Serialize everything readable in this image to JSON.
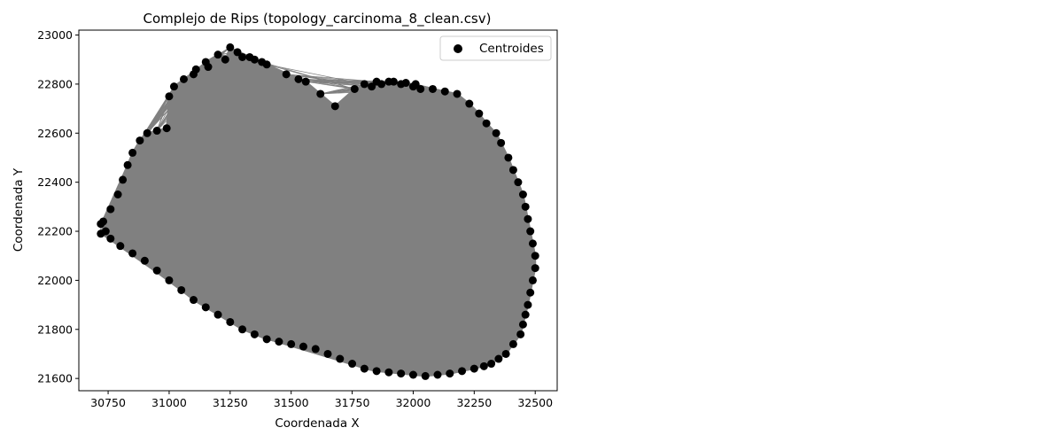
{
  "chart_data": {
    "type": "scatter",
    "title": "Complejo de Rips (topology_carcinoma_8_clean.csv)",
    "xlabel": "Coordenada X",
    "ylabel": "Coordenada Y",
    "xlim": [
      30630,
      32590
    ],
    "ylim": [
      21550,
      23020
    ],
    "xticks": [
      "30750",
      "31000",
      "31250",
      "31500",
      "31750",
      "32000",
      "32250",
      "32500"
    ],
    "yticks": [
      "21600",
      "21800",
      "22000",
      "22200",
      "22400",
      "22600",
      "22800",
      "23000"
    ],
    "grid": false,
    "legend": {
      "position": "top-right",
      "entries": [
        "Centroides"
      ]
    },
    "colors": {
      "points": "#000000",
      "edges": "#808080"
    },
    "series": [
      {
        "name": "Centroides",
        "x": [
          30720,
          30730,
          30760,
          30790,
          30810,
          30830,
          30850,
          30880,
          30910,
          30950,
          30990,
          31000,
          31020,
          31060,
          31110,
          31150,
          31200,
          31250,
          31300,
          31350,
          31400,
          31480,
          31530,
          31560,
          31620,
          31680,
          31760,
          31800,
          31850,
          31900,
          31950,
          32000,
          32030,
          32080,
          32130,
          32180,
          32230,
          32270,
          32300,
          32340,
          32360,
          32390,
          32410,
          32430,
          32450,
          32460,
          32470,
          32480,
          32490,
          32500,
          32500,
          32490,
          32480,
          32470,
          32460,
          32450,
          32440,
          32410,
          32380,
          32350,
          32320,
          32290,
          32250,
          32200,
          32150,
          32100,
          32050,
          32000,
          31950,
          31900,
          31850,
          31800,
          31750,
          31700,
          31650,
          31600,
          31550,
          31500,
          31450,
          31400,
          31350,
          31300,
          31250,
          31200,
          31150,
          31100,
          31050,
          31000,
          30950,
          30900,
          30850,
          30800,
          30760,
          30740,
          30720,
          31830,
          31870,
          31920,
          31970,
          32010,
          31100,
          31160,
          31230,
          31280,
          31330,
          31380
        ],
        "y": [
          22190,
          22240,
          22290,
          22350,
          22410,
          22470,
          22520,
          22570,
          22600,
          22610,
          22620,
          22750,
          22790,
          22820,
          22860,
          22890,
          22920,
          22950,
          22910,
          22900,
          22880,
          22840,
          22820,
          22810,
          22760,
          22710,
          22780,
          22800,
          22810,
          22810,
          22800,
          22790,
          22780,
          22780,
          22770,
          22760,
          22720,
          22680,
          22640,
          22600,
          22560,
          22500,
          22450,
          22400,
          22350,
          22300,
          22250,
          22200,
          22150,
          22100,
          22050,
          22000,
          21950,
          21900,
          21860,
          21820,
          21780,
          21740,
          21700,
          21680,
          21660,
          21650,
          21640,
          21630,
          21620,
          21615,
          21610,
          21615,
          21620,
          21625,
          21630,
          21640,
          21660,
          21680,
          21700,
          21720,
          21730,
          21740,
          21750,
          21760,
          21780,
          21800,
          21830,
          21860,
          21890,
          21920,
          21960,
          22000,
          22040,
          22080,
          22110,
          22140,
          22170,
          22200,
          22230,
          22790,
          22800,
          22810,
          22805,
          22800,
          22840,
          22870,
          22900,
          22930,
          22910,
          22890
        ]
      }
    ]
  }
}
